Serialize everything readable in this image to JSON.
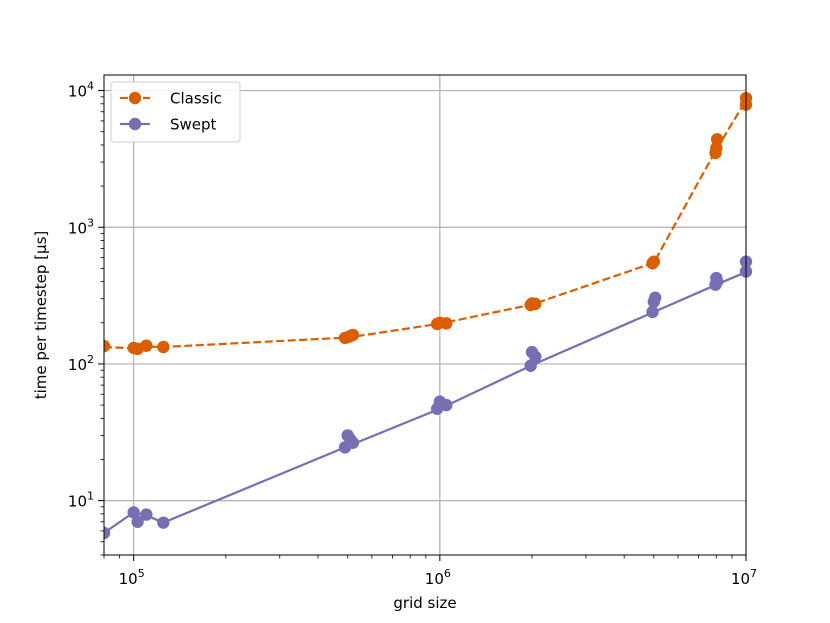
{
  "chart_data": {
    "type": "line",
    "xscale": "log",
    "yscale": "log",
    "xlabel": "grid size",
    "ylabel": "time per timestep [μs]",
    "xlim": [
      80000,
      10000000
    ],
    "ylim": [
      4,
      13000
    ],
    "grid": true,
    "legend": "top-left",
    "x_ticks": [
      {
        "value": 100000,
        "base": "10",
        "exp": "5"
      },
      {
        "value": 1000000,
        "base": "10",
        "exp": "6"
      },
      {
        "value": 10000000,
        "base": "10",
        "exp": "7"
      }
    ],
    "y_ticks": [
      {
        "value": 10,
        "base": "10",
        "exp": "1"
      },
      {
        "value": 100,
        "base": "10",
        "exp": "2"
      },
      {
        "value": 1000,
        "base": "10",
        "exp": "3"
      },
      {
        "value": 10000,
        "base": "10",
        "exp": "4"
      }
    ],
    "series": [
      {
        "name": "Classic",
        "color": "#d95f02",
        "linestyle": "dashed",
        "line": [
          [
            80000,
            133
          ],
          [
            100000,
            130
          ],
          [
            110000,
            134
          ],
          [
            125000,
            133
          ],
          [
            500000,
            156
          ],
          [
            1000000,
            197
          ],
          [
            2000000,
            272
          ],
          [
            5000000,
            550
          ],
          [
            8000000,
            3700
          ],
          [
            10000000,
            8500
          ]
        ],
        "points": [
          [
            80000,
            135
          ],
          [
            100000,
            131
          ],
          [
            103000,
            129
          ],
          [
            110000,
            136
          ],
          [
            125000,
            133
          ],
          [
            490000,
            155
          ],
          [
            500000,
            157
          ],
          [
            510000,
            160
          ],
          [
            520000,
            163
          ],
          [
            980000,
            196
          ],
          [
            1000000,
            200
          ],
          [
            1050000,
            198
          ],
          [
            1980000,
            270
          ],
          [
            2000000,
            277
          ],
          [
            2050000,
            275
          ],
          [
            4950000,
            545
          ],
          [
            5000000,
            560
          ],
          [
            7950000,
            3500
          ],
          [
            8000000,
            3800
          ],
          [
            8050000,
            4400
          ],
          [
            10000000,
            7900
          ],
          [
            10000000,
            8800
          ]
        ]
      },
      {
        "name": "Swept",
        "color": "#7570b3",
        "linestyle": "solid",
        "line": [
          [
            80000,
            5.8
          ],
          [
            100000,
            8.2
          ],
          [
            110000,
            7.8
          ],
          [
            125000,
            6.9
          ],
          [
            500000,
            25
          ],
          [
            1000000,
            47
          ],
          [
            2000000,
            98
          ],
          [
            5000000,
            240
          ],
          [
            8000000,
            380
          ],
          [
            10000000,
            470
          ]
        ],
        "points": [
          [
            80000,
            5.8
          ],
          [
            100000,
            8.2
          ],
          [
            103000,
            7.0
          ],
          [
            110000,
            7.9
          ],
          [
            125000,
            6.9
          ],
          [
            490000,
            24.5
          ],
          [
            500000,
            30
          ],
          [
            510000,
            28
          ],
          [
            520000,
            26.5
          ],
          [
            980000,
            47
          ],
          [
            1000000,
            53
          ],
          [
            1050000,
            50
          ],
          [
            1980000,
            97
          ],
          [
            2000000,
            122
          ],
          [
            2050000,
            113
          ],
          [
            4950000,
            240
          ],
          [
            5000000,
            285
          ],
          [
            5050000,
            305
          ],
          [
            7950000,
            380
          ],
          [
            8000000,
            425
          ],
          [
            8050000,
            400
          ],
          [
            10000000,
            475
          ],
          [
            10000000,
            560
          ]
        ]
      }
    ]
  }
}
